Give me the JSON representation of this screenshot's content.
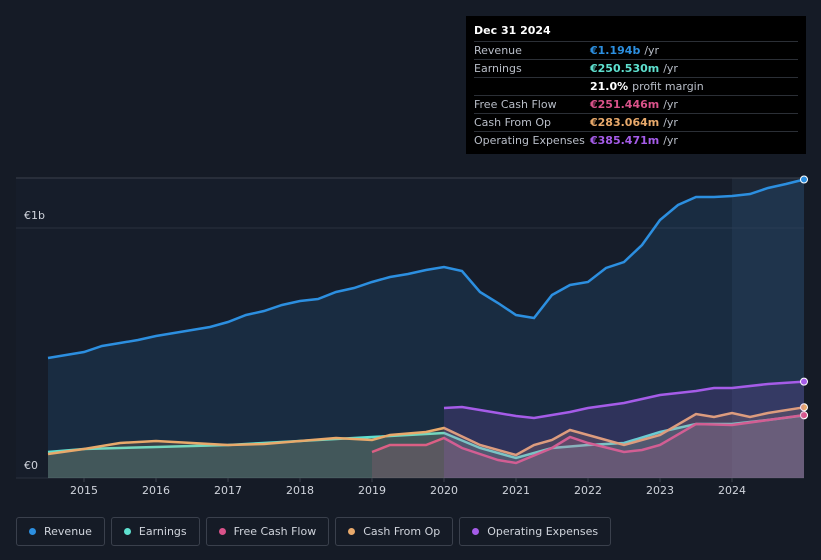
{
  "chart_data": {
    "type": "line",
    "xlim": [
      2014.5,
      2025
    ],
    "xticks": [
      2015,
      2016,
      2017,
      2018,
      2019,
      2020,
      2021,
      2022,
      2023,
      2024
    ],
    "ylim": [
      0,
      1200
    ],
    "yticks": [
      {
        "value": 0,
        "label": "€0"
      },
      {
        "value": 1000,
        "label": "€1b"
      }
    ],
    "series": [
      {
        "name": "Revenue",
        "color": "#2c8fe0",
        "x": [
          2014.5,
          2015,
          2015.25,
          2015.5,
          2015.75,
          2016,
          2016.25,
          2016.5,
          2016.75,
          2017,
          2017.25,
          2017.5,
          2017.75,
          2018,
          2018.25,
          2018.5,
          2018.75,
          2019,
          2019.25,
          2019.5,
          2019.75,
          2020,
          2020.25,
          2020.5,
          2020.75,
          2021,
          2021.25,
          2021.5,
          2021.75,
          2022,
          2022.25,
          2022.5,
          2022.75,
          2023,
          2023.25,
          2023.5,
          2023.75,
          2024,
          2024.25,
          2024.5,
          2024.75,
          2025
        ],
        "values": [
          480,
          504,
          528,
          540,
          552,
          568,
          580,
          592,
          604,
          624,
          652,
          668,
          692,
          708,
          716,
          744,
          760,
          784,
          804,
          816,
          832,
          844,
          828,
          744,
          700,
          652,
          640,
          732,
          772,
          784,
          840,
          864,
          932,
          1032,
          1092,
          1124,
          1124,
          1128,
          1136,
          1160,
          1176,
          1194
        ]
      },
      {
        "name": "Earnings",
        "color": "#5ee0cf",
        "x": [
          2014.5,
          2015,
          2016,
          2017,
          2018,
          2019,
          2020,
          2020.5,
          2021,
          2021.5,
          2022,
          2022.5,
          2023,
          2023.5,
          2024,
          2024.5,
          2025
        ],
        "values": [
          104,
          116,
          124,
          132,
          148,
          164,
          180,
          120,
          80,
          120,
          132,
          140,
          184,
          216,
          216,
          232,
          250.5
        ]
      },
      {
        "name": "Free Cash Flow",
        "color": "#d9528a",
        "x": [
          2019,
          2019.25,
          2019.75,
          2020,
          2020.25,
          2020.75,
          2021,
          2021.5,
          2021.75,
          2022,
          2022.5,
          2022.75,
          2023,
          2023.5,
          2024,
          2024.5,
          2025
        ],
        "values": [
          104,
          132,
          132,
          160,
          120,
          72,
          60,
          120,
          164,
          140,
          104,
          112,
          132,
          216,
          212,
          232,
          251.4
        ]
      },
      {
        "name": "Cash From Op",
        "color": "#e8a96b",
        "x": [
          2014.5,
          2015,
          2015.5,
          2016,
          2016.5,
          2017,
          2017.5,
          2018,
          2018.5,
          2019,
          2019.25,
          2019.75,
          2020,
          2020.5,
          2021,
          2021.25,
          2021.5,
          2021.75,
          2022,
          2022.5,
          2023,
          2023.5,
          2023.75,
          2024,
          2024.25,
          2024.5,
          2025
        ],
        "values": [
          96,
          116,
          140,
          148,
          140,
          132,
          136,
          148,
          160,
          152,
          172,
          184,
          200,
          132,
          92,
          132,
          152,
          192,
          172,
          132,
          172,
          256,
          244,
          260,
          244,
          260,
          283
        ]
      },
      {
        "name": "Operating Expenses",
        "color": "#a55ce8",
        "x": [
          2020,
          2020.25,
          2020.75,
          2021,
          2021.25,
          2021.5,
          2021.75,
          2022,
          2022.5,
          2023,
          2023.5,
          2023.75,
          2024,
          2024.5,
          2025
        ],
        "values": [
          280,
          284,
          260,
          248,
          240,
          252,
          264,
          280,
          300,
          332,
          348,
          360,
          360,
          376,
          385.5
        ]
      }
    ]
  },
  "tooltip": {
    "date": "Dec 31 2024",
    "rows": [
      {
        "label": "Revenue",
        "value": "€1.194b",
        "unit": "/yr"
      },
      {
        "label": "Earnings",
        "value": "€250.530m",
        "unit": "/yr"
      },
      {
        "label": "",
        "value": "21.0%",
        "unit": "profit margin"
      },
      {
        "label": "Free Cash Flow",
        "value": "€251.446m",
        "unit": "/yr"
      },
      {
        "label": "Cash From Op",
        "value": "€283.064m",
        "unit": "/yr"
      },
      {
        "label": "Operating Expenses",
        "value": "€385.471m",
        "unit": "/yr"
      }
    ]
  }
}
